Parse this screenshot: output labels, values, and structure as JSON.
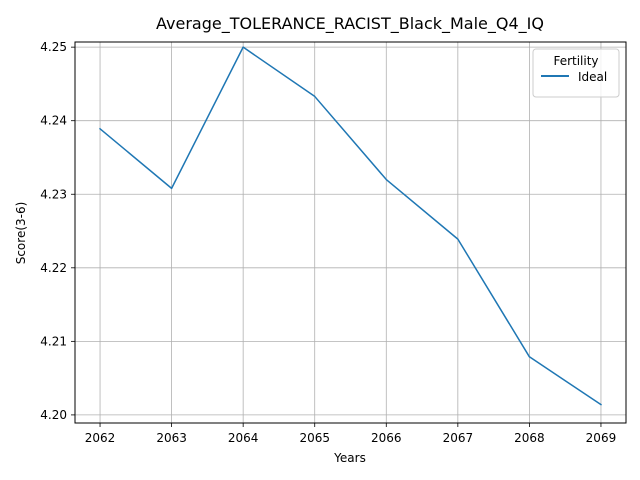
{
  "chart_data": {
    "type": "line",
    "title": "Average_TOLERANCE_RACIST_Black_Male_Q4_IQ",
    "xlabel": "Years",
    "ylabel": "Score(3-6)",
    "x": [
      2062,
      2063,
      2064,
      2065,
      2066,
      2067,
      2068,
      2069
    ],
    "xticks": [
      "2062",
      "2063",
      "2064",
      "2065",
      "2066",
      "2067",
      "2068",
      "2069"
    ],
    "yticks": [
      "4.20",
      "4.21",
      "4.22",
      "4.23",
      "4.24",
      "4.25"
    ],
    "ytick_values": [
      4.2,
      4.21,
      4.22,
      4.23,
      4.24,
      4.25
    ],
    "xlim": [
      2061.65,
      2069.35
    ],
    "ylim": [
      4.1989,
      4.2507
    ],
    "grid": true,
    "legend": {
      "title": "Fertility",
      "placement": "top-right"
    },
    "series": [
      {
        "name": "Ideal",
        "color": "#1f77b4",
        "values": [
          4.2389,
          4.2308,
          4.25,
          4.2433,
          4.232,
          4.2239,
          4.2079,
          4.2014
        ]
      }
    ]
  }
}
